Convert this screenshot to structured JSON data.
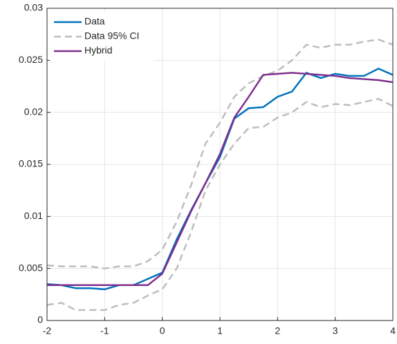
{
  "chart_data": {
    "type": "line",
    "x": [
      -2,
      -1.75,
      -1.5,
      -1.25,
      -1,
      -0.75,
      -0.5,
      -0.25,
      0,
      0.25,
      0.5,
      0.75,
      1,
      1.25,
      1.5,
      1.75,
      2,
      2.25,
      2.5,
      2.75,
      3,
      3.25,
      3.5,
      3.75,
      4
    ],
    "series": [
      {
        "name": "Data",
        "color": "#0072bd",
        "dash": false,
        "values": [
          0.0035,
          0.0034,
          0.0031,
          0.0031,
          0.003,
          0.0034,
          0.0034,
          0.004,
          0.0046,
          0.0078,
          0.0106,
          0.0132,
          0.0157,
          0.0194,
          0.0204,
          0.0205,
          0.0215,
          0.022,
          0.0238,
          0.0233,
          0.0237,
          0.0235,
          0.0235,
          0.0242,
          0.0236
        ]
      },
      {
        "name": "Data 95% CI",
        "color": "#bdbdbd",
        "dash": true,
        "upper": [
          0.0053,
          0.0052,
          0.0052,
          0.0052,
          0.005,
          0.0052,
          0.0052,
          0.0057,
          0.0068,
          0.0095,
          0.013,
          0.017,
          0.019,
          0.0215,
          0.0228,
          0.0235,
          0.024,
          0.025,
          0.0265,
          0.0262,
          0.0265,
          0.0265,
          0.0268,
          0.027,
          0.0265
        ],
        "lower": [
          0.0015,
          0.0017,
          0.001,
          0.001,
          0.001,
          0.0015,
          0.0017,
          0.0024,
          0.003,
          0.005,
          0.0085,
          0.0125,
          0.015,
          0.017,
          0.0185,
          0.0186,
          0.0195,
          0.02,
          0.021,
          0.0205,
          0.0208,
          0.0207,
          0.021,
          0.0213,
          0.0206
        ]
      },
      {
        "name": "Hybrid",
        "color": "#7e2f8e",
        "dash": false,
        "values": [
          0.0034,
          0.0034,
          0.0034,
          0.0034,
          0.0034,
          0.0034,
          0.0034,
          0.0034,
          0.0045,
          0.0075,
          0.0105,
          0.0132,
          0.016,
          0.0195,
          0.0215,
          0.0236,
          0.0237,
          0.0238,
          0.0237,
          0.0236,
          0.0235,
          0.0233,
          0.0232,
          0.0231,
          0.0229
        ]
      }
    ],
    "xlim": [
      -2,
      4
    ],
    "xticks": [
      -2,
      -1,
      0,
      1,
      2,
      3,
      4
    ],
    "ylim": [
      0,
      0.03
    ],
    "yticks": [
      0,
      0.005,
      0.01,
      0.015,
      0.02,
      0.025,
      0.03
    ],
    "grid": true,
    "legend": "top-left"
  }
}
